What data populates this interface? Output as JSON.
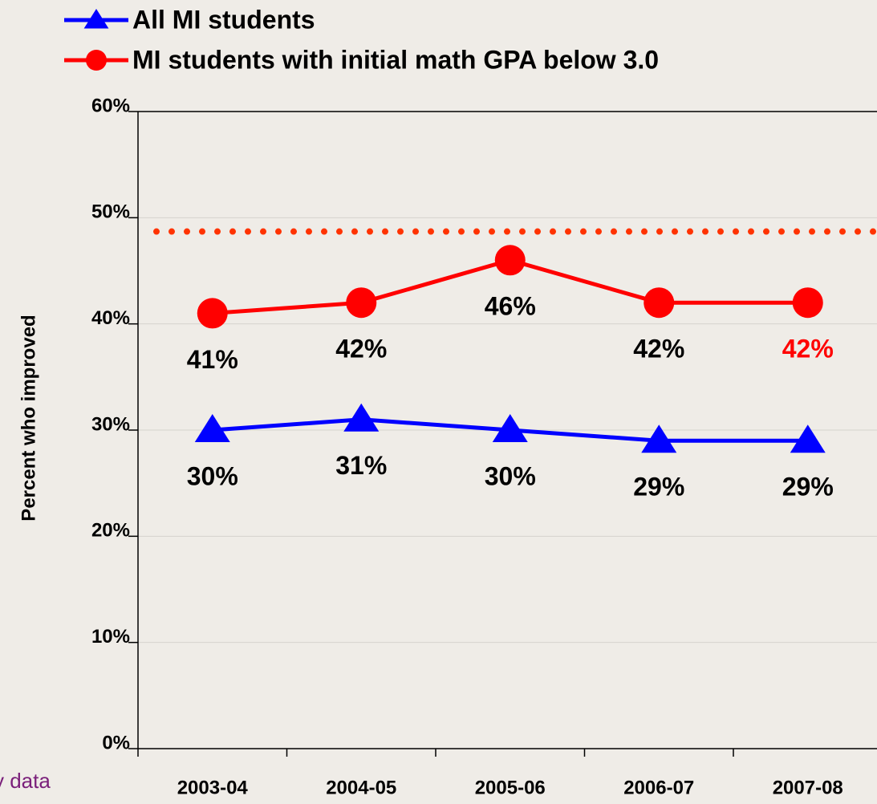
{
  "chart_data": {
    "type": "line",
    "y_label": "Percent who improved",
    "footnote": "y data",
    "categories": [
      "2003-04",
      "2004-05",
      "2005-06",
      "2006-07",
      "2007-08"
    ],
    "series": [
      {
        "name": "All MI students",
        "color": "#0000ff",
        "marker": "triangle",
        "values": [
          30,
          31,
          30,
          29,
          29
        ],
        "value_labels": [
          "30%",
          "31%",
          "30%",
          "29%",
          "29%"
        ],
        "value_label_colors": [
          "#000000",
          "#000000",
          "#000000",
          "#000000",
          "#000000"
        ]
      },
      {
        "name": "MI students with initial math GPA below 3.0",
        "color": "#ff0000",
        "marker": "circle",
        "values": [
          41,
          42,
          46,
          42,
          42
        ],
        "value_labels": [
          "41%",
          "42%",
          "46%",
          "42%",
          "42%"
        ],
        "value_label_colors": [
          "#000000",
          "#000000",
          "#000000",
          "#000000",
          "#ff0000"
        ]
      }
    ],
    "reference_line": 48.7,
    "reference_color": "#ff3300",
    "ylim": [
      0,
      60
    ],
    "yticks": [
      {
        "value": 0,
        "label": "0%"
      },
      {
        "value": 10,
        "label": "10%"
      },
      {
        "value": 20,
        "label": "20%"
      },
      {
        "value": 30,
        "label": "30%"
      },
      {
        "value": 40,
        "label": "40%"
      },
      {
        "value": 50,
        "label": "50%"
      },
      {
        "value": 60,
        "label": "60%"
      }
    ],
    "grid": true
  }
}
